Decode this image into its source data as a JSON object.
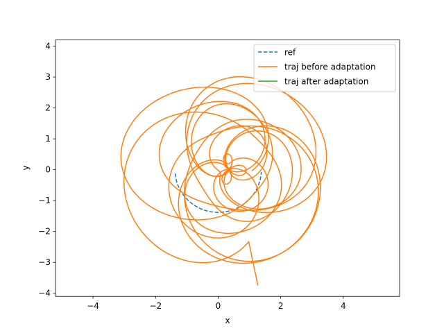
{
  "chart_data": {
    "type": "line",
    "title": "",
    "xlabel": "x",
    "ylabel": "y",
    "xlim": [
      -5.2,
      5.8
    ],
    "ylim": [
      -4.1,
      4.2
    ],
    "xticks": [
      -4,
      -2,
      0,
      2,
      4
    ],
    "yticks": [
      -4,
      -3,
      -2,
      -1,
      0,
      1,
      2,
      3,
      4
    ],
    "grid": false,
    "legend_position": "top-right",
    "series": [
      {
        "name": "ref",
        "color": "#1f77b4",
        "style": "dashed",
        "kind": "parametric-circle",
        "center": [
          0,
          0
        ],
        "radius": 1.38,
        "t_start_deg": 185,
        "t_end_deg": 357
      },
      {
        "name": "traj before adaptation",
        "color": "#ff7f0e",
        "style": "solid",
        "kind": "parametric-rose",
        "start": [
          1.27,
          -3.75
        ],
        "a": 1.45,
        "b": 1.95,
        "k": 0.72,
        "turns": 13.2
      },
      {
        "name": "traj after adaptation",
        "color": "#2ca02c",
        "style": "solid",
        "kind": "none"
      }
    ]
  }
}
